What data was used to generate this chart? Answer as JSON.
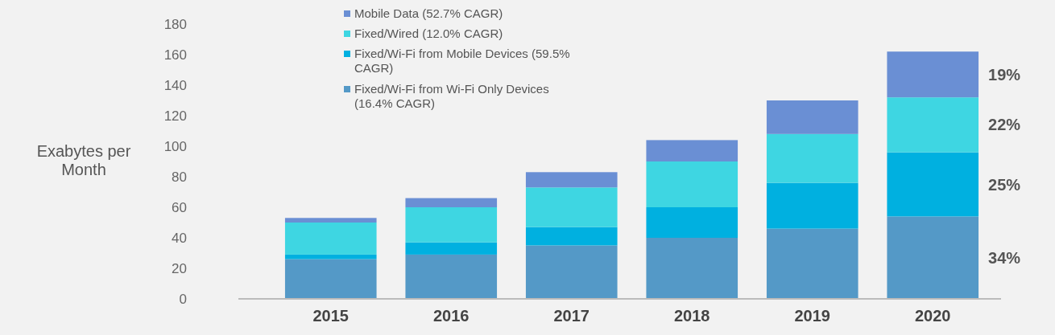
{
  "chart_data": {
    "type": "bar",
    "stacked": true,
    "ylabel": "Exabytes per Month",
    "categories": [
      "2015",
      "2016",
      "2017",
      "2018",
      "2019",
      "2020"
    ],
    "series": [
      {
        "name": "Fixed/Wi-Fi from Wi-Fi Only Devices (16.4% CAGR)",
        "color": "#5499c7",
        "values": [
          26,
          29,
          35,
          40,
          46,
          54
        ]
      },
      {
        "name": "Fixed/Wi-Fi from Mobile Devices (59.5% CAGR)",
        "color": "#00b0e0",
        "values": [
          3,
          8,
          12,
          20,
          30,
          42
        ]
      },
      {
        "name": "Fixed/Wired (12.0% CAGR)",
        "color": "#3ed6e2",
        "values": [
          21,
          23,
          26,
          30,
          32,
          36
        ]
      },
      {
        "name": "Mobile Data (52.7% CAGR)",
        "color": "#6a8fd4",
        "values": [
          3,
          6,
          10,
          14,
          22,
          30
        ]
      }
    ],
    "ylim": [
      0,
      180
    ],
    "yticks": [
      0,
      20,
      40,
      60,
      80,
      100,
      120,
      140,
      160,
      180
    ],
    "legend": "top left",
    "annotations": [
      "19%",
      "22%",
      "25%",
      "34%"
    ]
  }
}
